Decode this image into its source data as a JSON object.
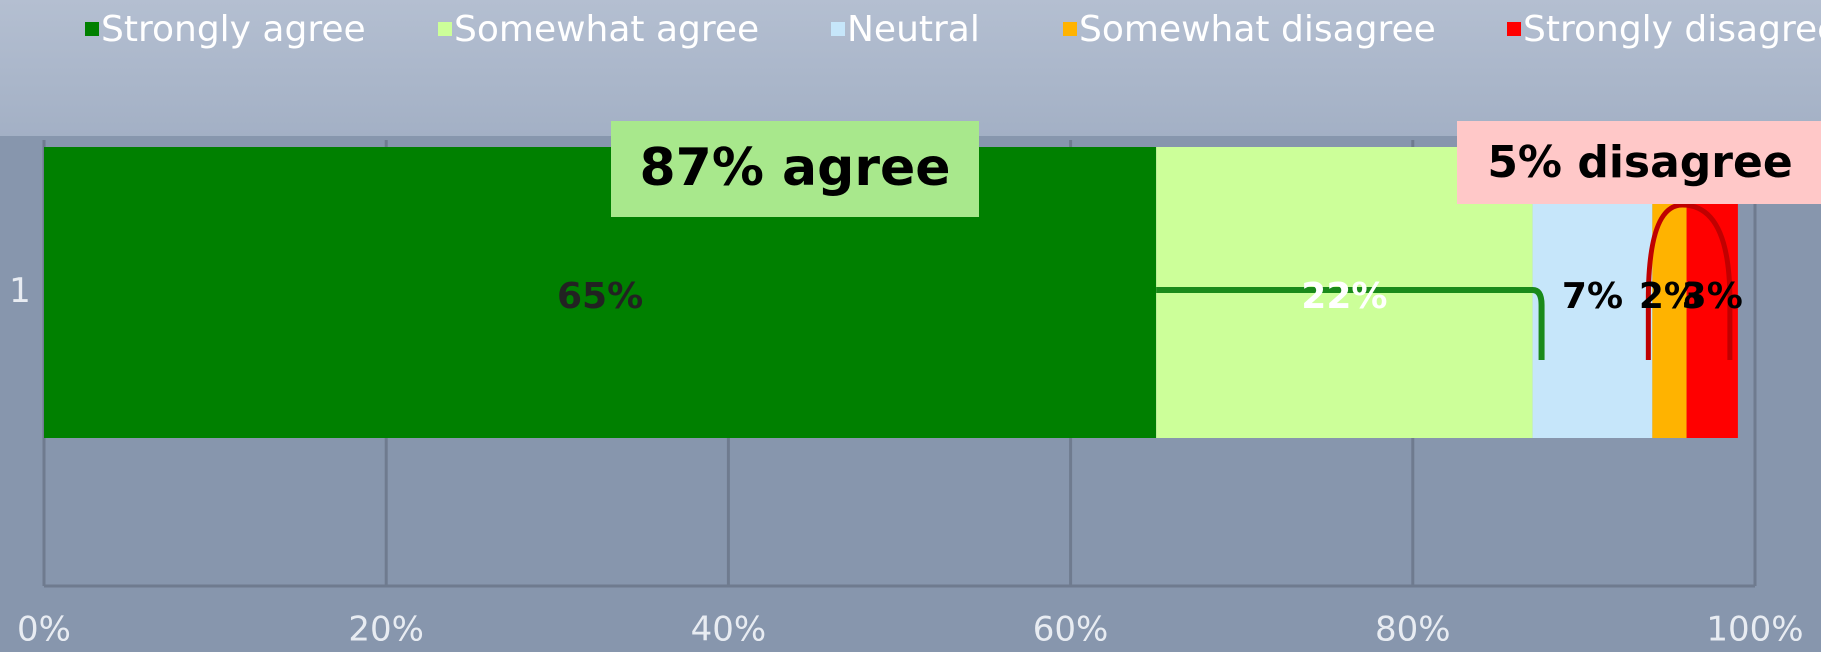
{
  "chart_data": {
    "type": "stacked-bar-horizontal",
    "categories": [
      "1"
    ],
    "series": [
      {
        "name": "Strongly agree",
        "color": "#008000",
        "values": [
          65
        ],
        "value_labels": [
          "65%"
        ]
      },
      {
        "name": "Somewhat agree",
        "color": "#ccff99",
        "values": [
          22
        ],
        "value_labels": [
          "22%"
        ]
      },
      {
        "name": "Neutral",
        "color": "#c6e6fa",
        "values": [
          7
        ],
        "value_labels": [
          "7%"
        ]
      },
      {
        "name": "Somewhat disagree",
        "color": "#ffb300",
        "values": [
          2
        ],
        "value_labels": [
          "2%"
        ]
      },
      {
        "name": "Strongly disagree",
        "color": "#ff0000",
        "values": [
          3
        ],
        "value_labels": [
          "3%"
        ]
      }
    ],
    "xlim": [
      0,
      100
    ],
    "xticks": [
      {
        "value": 0,
        "label": "0%"
      },
      {
        "value": 20,
        "label": "20%"
      },
      {
        "value": 40,
        "label": "40%"
      },
      {
        "value": 60,
        "label": "60%"
      },
      {
        "value": 80,
        "label": "80%"
      },
      {
        "value": 100,
        "label": "100%"
      }
    ],
    "grid": true,
    "legend": "top",
    "annotations": [
      "87% agree",
      "5% disagree"
    ]
  }
}
